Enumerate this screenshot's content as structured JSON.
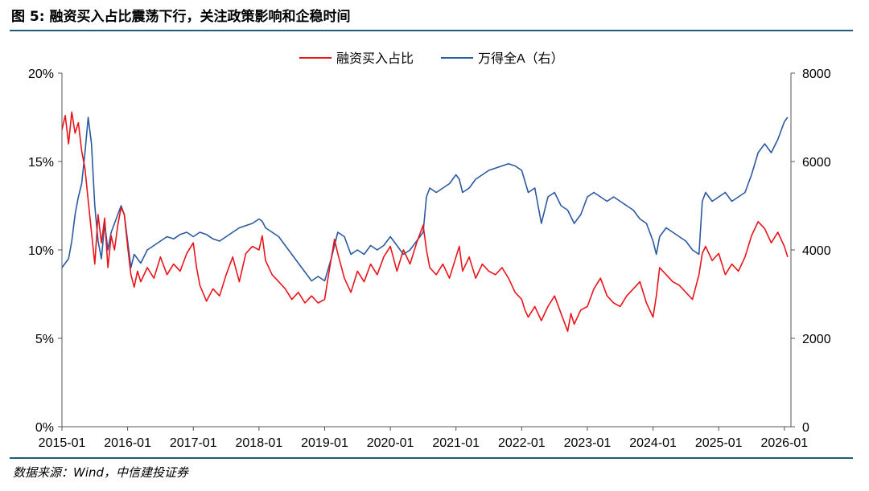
{
  "header": {
    "title": "图 5: 融资买入占比震荡下行，关注政策影响和企稳时间"
  },
  "footer": {
    "source": "数据来源：Wind，中信建投证券"
  },
  "chart_data": {
    "type": "line",
    "title": "图 5: 融资买入占比震荡下行，关注政策影响和企稳时间",
    "xlabel": "",
    "ylabel_left": "",
    "ylabel_right": "",
    "x_ticks": [
      "2015-01",
      "2016-01",
      "2017-01",
      "2018-01",
      "2019-01",
      "2020-01",
      "2021-01",
      "2022-01",
      "2023-01",
      "2024-01",
      "2025-01",
      "2026-01"
    ],
    "x_range": [
      2015.0,
      2026.1
    ],
    "y_left": {
      "range": [
        0,
        20
      ],
      "ticks": [
        0,
        5,
        10,
        15,
        20
      ],
      "tick_labels": [
        "0%",
        "5%",
        "10%",
        "15%",
        "20%"
      ]
    },
    "y_right": {
      "range": [
        0,
        8000
      ],
      "ticks": [
        0,
        2000,
        4000,
        6000,
        8000
      ],
      "tick_labels": [
        "0",
        "2000",
        "4000",
        "6000",
        "8000"
      ]
    },
    "legend_position": "top-center",
    "series": [
      {
        "name": "融资买入占比",
        "axis": "left",
        "color": "#e8141b",
        "points": [
          [
            2015.0,
            16.8
          ],
          [
            2015.05,
            17.6
          ],
          [
            2015.1,
            16.0
          ],
          [
            2015.15,
            17.8
          ],
          [
            2015.2,
            16.6
          ],
          [
            2015.25,
            17.2
          ],
          [
            2015.3,
            15.6
          ],
          [
            2015.35,
            14.6
          ],
          [
            2015.4,
            12.8
          ],
          [
            2015.45,
            11.0
          ],
          [
            2015.5,
            9.2
          ],
          [
            2015.55,
            12.0
          ],
          [
            2015.6,
            10.4
          ],
          [
            2015.65,
            11.8
          ],
          [
            2015.7,
            9.0
          ],
          [
            2015.75,
            10.8
          ],
          [
            2015.8,
            10.0
          ],
          [
            2015.85,
            11.4
          ],
          [
            2015.9,
            12.4
          ],
          [
            2015.95,
            12.0
          ],
          [
            2016.0,
            10.2
          ],
          [
            2016.05,
            8.6
          ],
          [
            2016.1,
            7.9
          ],
          [
            2016.15,
            8.8
          ],
          [
            2016.2,
            8.2
          ],
          [
            2016.3,
            9.0
          ],
          [
            2016.4,
            8.4
          ],
          [
            2016.5,
            9.6
          ],
          [
            2016.6,
            8.6
          ],
          [
            2016.7,
            9.2
          ],
          [
            2016.8,
            8.8
          ],
          [
            2016.9,
            9.8
          ],
          [
            2017.0,
            10.4
          ],
          [
            2017.05,
            9.0
          ],
          [
            2017.1,
            8.0
          ],
          [
            2017.2,
            7.1
          ],
          [
            2017.3,
            7.8
          ],
          [
            2017.4,
            7.4
          ],
          [
            2017.5,
            8.6
          ],
          [
            2017.6,
            9.6
          ],
          [
            2017.7,
            8.2
          ],
          [
            2017.8,
            9.8
          ],
          [
            2017.9,
            10.2
          ],
          [
            2018.0,
            10.0
          ],
          [
            2018.05,
            10.8
          ],
          [
            2018.1,
            9.4
          ],
          [
            2018.2,
            8.6
          ],
          [
            2018.3,
            8.2
          ],
          [
            2018.4,
            7.8
          ],
          [
            2018.5,
            7.2
          ],
          [
            2018.6,
            7.6
          ],
          [
            2018.7,
            7.0
          ],
          [
            2018.8,
            7.4
          ],
          [
            2018.9,
            7.0
          ],
          [
            2019.0,
            7.2
          ],
          [
            2019.05,
            8.4
          ],
          [
            2019.15,
            10.6
          ],
          [
            2019.2,
            9.8
          ],
          [
            2019.3,
            8.4
          ],
          [
            2019.4,
            7.6
          ],
          [
            2019.5,
            8.8
          ],
          [
            2019.6,
            8.2
          ],
          [
            2019.7,
            9.2
          ],
          [
            2019.8,
            8.6
          ],
          [
            2019.9,
            9.6
          ],
          [
            2020.0,
            10.2
          ],
          [
            2020.1,
            8.8
          ],
          [
            2020.2,
            10.0
          ],
          [
            2020.3,
            9.2
          ],
          [
            2020.4,
            10.4
          ],
          [
            2020.5,
            11.4
          ],
          [
            2020.55,
            10.0
          ],
          [
            2020.6,
            9.0
          ],
          [
            2020.7,
            8.6
          ],
          [
            2020.8,
            9.2
          ],
          [
            2020.9,
            8.4
          ],
          [
            2021.0,
            9.6
          ],
          [
            2021.05,
            10.2
          ],
          [
            2021.1,
            8.8
          ],
          [
            2021.2,
            9.6
          ],
          [
            2021.3,
            8.4
          ],
          [
            2021.4,
            9.2
          ],
          [
            2021.5,
            8.8
          ],
          [
            2021.6,
            8.6
          ],
          [
            2021.7,
            9.0
          ],
          [
            2021.8,
            8.4
          ],
          [
            2021.9,
            7.6
          ],
          [
            2022.0,
            7.2
          ],
          [
            2022.05,
            6.6
          ],
          [
            2022.1,
            6.2
          ],
          [
            2022.2,
            6.8
          ],
          [
            2022.3,
            6.0
          ],
          [
            2022.4,
            6.8
          ],
          [
            2022.5,
            7.4
          ],
          [
            2022.6,
            6.4
          ],
          [
            2022.7,
            5.4
          ],
          [
            2022.75,
            6.4
          ],
          [
            2022.8,
            5.8
          ],
          [
            2022.9,
            6.6
          ],
          [
            2023.0,
            6.8
          ],
          [
            2023.1,
            7.8
          ],
          [
            2023.2,
            8.4
          ],
          [
            2023.3,
            7.4
          ],
          [
            2023.4,
            7.0
          ],
          [
            2023.5,
            6.8
          ],
          [
            2023.6,
            7.4
          ],
          [
            2023.7,
            7.8
          ],
          [
            2023.8,
            8.2
          ],
          [
            2023.9,
            7.0
          ],
          [
            2024.0,
            6.2
          ],
          [
            2024.05,
            7.4
          ],
          [
            2024.1,
            9.0
          ],
          [
            2024.2,
            8.6
          ],
          [
            2024.3,
            8.2
          ],
          [
            2024.4,
            8.0
          ],
          [
            2024.5,
            7.6
          ],
          [
            2024.6,
            7.2
          ],
          [
            2024.7,
            8.6
          ],
          [
            2024.75,
            9.8
          ],
          [
            2024.8,
            10.2
          ],
          [
            2024.9,
            9.4
          ],
          [
            2025.0,
            9.8
          ],
          [
            2025.1,
            8.6
          ],
          [
            2025.2,
            9.2
          ],
          [
            2025.3,
            8.8
          ],
          [
            2025.4,
            9.6
          ],
          [
            2025.5,
            10.8
          ],
          [
            2025.6,
            11.6
          ],
          [
            2025.7,
            11.2
          ],
          [
            2025.8,
            10.4
          ],
          [
            2025.9,
            11.0
          ],
          [
            2026.0,
            10.2
          ],
          [
            2026.05,
            9.6
          ]
        ]
      },
      {
        "name": "万得全A（右）",
        "axis": "right",
        "color": "#2b5aa0",
        "points": [
          [
            2015.0,
            3600
          ],
          [
            2015.05,
            3700
          ],
          [
            2015.1,
            3800
          ],
          [
            2015.15,
            4200
          ],
          [
            2015.2,
            4800
          ],
          [
            2015.25,
            5200
          ],
          [
            2015.3,
            5500
          ],
          [
            2015.35,
            6200
          ],
          [
            2015.4,
            7000
          ],
          [
            2015.45,
            6400
          ],
          [
            2015.5,
            5000
          ],
          [
            2015.55,
            4200
          ],
          [
            2015.6,
            3800
          ],
          [
            2015.65,
            4600
          ],
          [
            2015.7,
            4000
          ],
          [
            2015.75,
            4400
          ],
          [
            2015.8,
            4600
          ],
          [
            2015.85,
            4800
          ],
          [
            2015.9,
            5000
          ],
          [
            2015.95,
            4800
          ],
          [
            2016.0,
            4200
          ],
          [
            2016.05,
            3600
          ],
          [
            2016.1,
            3900
          ],
          [
            2016.2,
            3700
          ],
          [
            2016.3,
            4000
          ],
          [
            2016.4,
            4100
          ],
          [
            2016.5,
            4200
          ],
          [
            2016.6,
            4300
          ],
          [
            2016.7,
            4250
          ],
          [
            2016.8,
            4350
          ],
          [
            2016.9,
            4400
          ],
          [
            2017.0,
            4300
          ],
          [
            2017.1,
            4400
          ],
          [
            2017.2,
            4350
          ],
          [
            2017.3,
            4250
          ],
          [
            2017.4,
            4200
          ],
          [
            2017.5,
            4300
          ],
          [
            2017.6,
            4400
          ],
          [
            2017.7,
            4500
          ],
          [
            2017.8,
            4550
          ],
          [
            2017.9,
            4600
          ],
          [
            2018.0,
            4700
          ],
          [
            2018.05,
            4650
          ],
          [
            2018.1,
            4500
          ],
          [
            2018.2,
            4400
          ],
          [
            2018.3,
            4300
          ],
          [
            2018.4,
            4100
          ],
          [
            2018.5,
            3900
          ],
          [
            2018.6,
            3700
          ],
          [
            2018.7,
            3500
          ],
          [
            2018.8,
            3300
          ],
          [
            2018.9,
            3400
          ],
          [
            2019.0,
            3300
          ],
          [
            2019.1,
            3800
          ],
          [
            2019.2,
            4400
          ],
          [
            2019.3,
            4300
          ],
          [
            2019.4,
            3900
          ],
          [
            2019.5,
            4000
          ],
          [
            2019.6,
            3900
          ],
          [
            2019.7,
            4100
          ],
          [
            2019.8,
            4000
          ],
          [
            2019.9,
            4100
          ],
          [
            2020.0,
            4300
          ],
          [
            2020.1,
            4100
          ],
          [
            2020.2,
            3900
          ],
          [
            2020.3,
            4000
          ],
          [
            2020.4,
            4200
          ],
          [
            2020.5,
            4400
          ],
          [
            2020.55,
            5200
          ],
          [
            2020.6,
            5400
          ],
          [
            2020.7,
            5300
          ],
          [
            2020.8,
            5400
          ],
          [
            2020.9,
            5500
          ],
          [
            2021.0,
            5700
          ],
          [
            2021.05,
            5600
          ],
          [
            2021.1,
            5300
          ],
          [
            2021.2,
            5400
          ],
          [
            2021.3,
            5600
          ],
          [
            2021.4,
            5700
          ],
          [
            2021.5,
            5800
          ],
          [
            2021.6,
            5850
          ],
          [
            2021.7,
            5900
          ],
          [
            2021.8,
            5950
          ],
          [
            2021.9,
            5900
          ],
          [
            2022.0,
            5800
          ],
          [
            2022.1,
            5300
          ],
          [
            2022.2,
            5400
          ],
          [
            2022.3,
            4600
          ],
          [
            2022.4,
            5200
          ],
          [
            2022.5,
            5300
          ],
          [
            2022.6,
            5000
          ],
          [
            2022.7,
            4900
          ],
          [
            2022.8,
            4600
          ],
          [
            2022.9,
            4800
          ],
          [
            2023.0,
            5200
          ],
          [
            2023.1,
            5300
          ],
          [
            2023.2,
            5200
          ],
          [
            2023.3,
            5100
          ],
          [
            2023.4,
            5200
          ],
          [
            2023.5,
            5100
          ],
          [
            2023.6,
            5000
          ],
          [
            2023.7,
            4900
          ],
          [
            2023.8,
            4700
          ],
          [
            2023.9,
            4600
          ],
          [
            2024.0,
            4200
          ],
          [
            2024.05,
            3900
          ],
          [
            2024.1,
            4300
          ],
          [
            2024.2,
            4500
          ],
          [
            2024.3,
            4400
          ],
          [
            2024.4,
            4300
          ],
          [
            2024.5,
            4200
          ],
          [
            2024.6,
            4000
          ],
          [
            2024.7,
            3900
          ],
          [
            2024.75,
            5100
          ],
          [
            2024.8,
            5300
          ],
          [
            2024.9,
            5100
          ],
          [
            2025.0,
            5200
          ],
          [
            2025.1,
            5300
          ],
          [
            2025.2,
            5100
          ],
          [
            2025.3,
            5200
          ],
          [
            2025.4,
            5300
          ],
          [
            2025.5,
            5700
          ],
          [
            2025.6,
            6200
          ],
          [
            2025.7,
            6400
          ],
          [
            2025.8,
            6200
          ],
          [
            2025.9,
            6500
          ],
          [
            2026.0,
            6900
          ],
          [
            2026.05,
            7000
          ]
        ]
      }
    ]
  }
}
